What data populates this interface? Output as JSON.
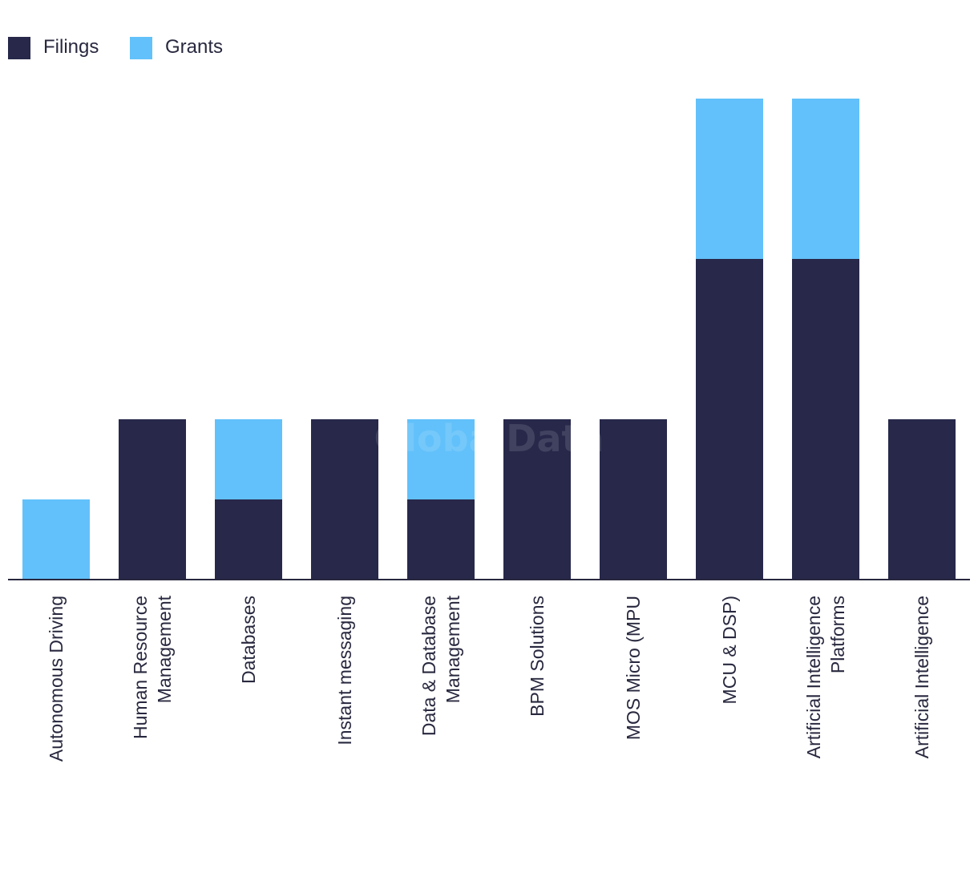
{
  "chart_data": {
    "type": "bar",
    "stacked": true,
    "watermark": "GlobalData",
    "legend": {
      "position": "top-left",
      "entries": [
        {
          "name": "Filings",
          "color": "#27284a"
        },
        {
          "name": "Grants",
          "color": "#62c1fa"
        }
      ]
    },
    "categories": [
      [
        "Autonomous Driving"
      ],
      [
        "Human Resource",
        "Management"
      ],
      [
        "Databases"
      ],
      [
        "Instant messaging"
      ],
      [
        "Data & Database",
        "Management"
      ],
      [
        "BPM Solutions"
      ],
      [
        "MOS Micro (MPU"
      ],
      [
        "MCU & DSP)"
      ],
      [
        "Artificial Intelligence",
        "Platforms"
      ],
      [
        "Artificial Intelligence"
      ]
    ],
    "series": [
      {
        "name": "Filings",
        "color": "#27284a",
        "values": [
          0,
          2,
          1,
          2,
          1,
          2,
          2,
          4,
          4,
          2
        ]
      },
      {
        "name": "Grants",
        "color": "#62c1fa",
        "values": [
          1,
          0,
          1,
          0,
          1,
          0,
          0,
          2,
          2,
          0
        ]
      }
    ],
    "ylim": [
      0,
      6
    ],
    "title": "",
    "xlabel": "",
    "ylabel": ""
  }
}
